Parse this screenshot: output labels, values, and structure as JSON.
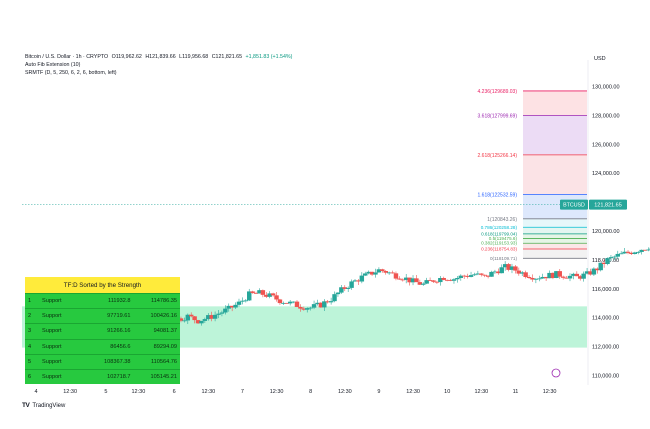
{
  "header": {
    "line1": {
      "symbol": "Bitcoin / U.S. Dollar · 1h · CRYPTO",
      "o": "O119,962.62",
      "h": "H121,839.66",
      "l": "L119,956.68",
      "c": "C121,821.65",
      "change": "+1,851.83 (+1.54%)"
    },
    "line2": "Auto Fib Extension (10)",
    "line3": "SRMTF (D, 5, 250, 6, 2, 6, bottom, left)"
  },
  "currency_label": "USD",
  "price_badge": {
    "symbol": "BTCUSD",
    "value": "121,821.65"
  },
  "branding": "TradingView",
  "colors": {
    "up": "#26a69a",
    "down": "#ef5350",
    "support_zone": "#b2f2d2",
    "table_title": "#ffeb3b",
    "table_row": "#27c93f"
  },
  "tf_table": {
    "title": "TF:D Sorted by the Strength",
    "rows": [
      {
        "rank": "1",
        "type": "Support",
        "low": "111932.8",
        "high": "114786.35"
      },
      {
        "rank": "2",
        "type": "Support",
        "low": "97719.61",
        "high": "100426.16"
      },
      {
        "rank": "3",
        "type": "Support",
        "low": "91266.16",
        "high": "94081.37"
      },
      {
        "rank": "4",
        "type": "Support",
        "low": "86456.6",
        "high": "89294.09"
      },
      {
        "rank": "5",
        "type": "Support",
        "low": "108367.38",
        "high": "110564.76"
      },
      {
        "rank": "6",
        "type": "Support",
        "low": "102718.7",
        "high": "105145.21"
      }
    ]
  },
  "chart_data": {
    "type": "candlestick",
    "symbol": "BTCUSD",
    "interval": "1h",
    "ylim": [
      109000,
      131000
    ],
    "y_ticks": [
      110000,
      112000,
      114000,
      116000,
      118000,
      120000,
      122000,
      124000,
      126000,
      128000,
      130000
    ],
    "y_tick_labels": [
      "110,000.00",
      "112,000.00",
      "114,000.00",
      "116,000.00",
      "118,000.00",
      "120,000.00",
      "122,000.00",
      "124,000.00",
      "126,000.00",
      "128,000.00",
      "130,000.00"
    ],
    "x_tick_labels": [
      "4",
      "12:30",
      "5",
      "12:30",
      "6",
      "12:30",
      "7",
      "12:30",
      "8",
      "12:30",
      "9",
      "12:30",
      "10",
      "12:30",
      "11",
      "12:30"
    ],
    "x_tick_index": [
      0,
      20,
      41,
      60,
      81,
      101,
      121,
      141,
      161,
      181,
      201,
      221,
      241,
      261,
      281,
      301
    ],
    "last_price": 121821.65,
    "support_zone": [
      111932.8,
      114786.35
    ],
    "fib_levels": [
      {
        "label": "4.236(129689.03)",
        "value": 129689.03,
        "color": "#e91e63"
      },
      {
        "label": "3.618(127999.69)",
        "value": 127999.69,
        "color": "#9c27b0"
      },
      {
        "label": "2.618(125266.14)",
        "value": 125266.14,
        "color": "#f23645"
      },
      {
        "label": "1.618(122532.59)",
        "value": 122532.59,
        "color": "#2962ff"
      },
      {
        "label": "1(120843.26)",
        "value": 120843.26,
        "color": "#787b86"
      },
      {
        "label": "0.786(120258.28)",
        "value": 120258.28,
        "color": "#00bcd4"
      },
      {
        "label": "0.618(119799.04)",
        "value": 119799.04,
        "color": "#089981"
      },
      {
        "label": "0.5(119475.6)",
        "value": 119475.6,
        "color": "#4caf50"
      },
      {
        "label": "0.382(119153.93)",
        "value": 119153.93,
        "color": "#4caf50"
      },
      {
        "label": "0.236(118754.83)",
        "value": 118754.83,
        "color": "#f23645"
      },
      {
        "label": "0(118109.71)",
        "value": 118109.71,
        "color": "#787b86"
      }
    ],
    "close_path": [
      [
        0,
        113900
      ],
      [
        10,
        114200
      ],
      [
        20,
        114400
      ],
      [
        28,
        114900
      ],
      [
        35,
        115200
      ],
      [
        42,
        114700
      ],
      [
        50,
        114300
      ],
      [
        58,
        114000
      ],
      [
        66,
        113600
      ],
      [
        72,
        113500
      ],
      [
        78,
        113300
      ],
      [
        84,
        113500
      ],
      [
        90,
        113900
      ],
      [
        96,
        114100
      ],
      [
        102,
        113800
      ],
      [
        108,
        114000
      ],
      [
        114,
        114300
      ],
      [
        120,
        114600
      ],
      [
        126,
        115000
      ],
      [
        132,
        115600
      ],
      [
        138,
        115700
      ],
      [
        144,
        115500
      ],
      [
        150,
        115200
      ],
      [
        156,
        115000
      ],
      [
        162,
        114800
      ],
      [
        168,
        114700
      ],
      [
        174,
        114900
      ],
      [
        180,
        115300
      ],
      [
        186,
        115900
      ],
      [
        192,
        116400
      ],
      [
        198,
        116800
      ],
      [
        204,
        117100
      ],
      [
        208,
        117300
      ],
      [
        212,
        117200
      ],
      [
        216,
        117000
      ],
      [
        222,
        116800
      ],
      [
        228,
        116500
      ],
      [
        234,
        116300
      ],
      [
        240,
        116600
      ],
      [
        246,
        116800
      ],
      [
        252,
        116700
      ],
      [
        258,
        116900
      ],
      [
        264,
        117000
      ],
      [
        270,
        116800
      ],
      [
        276,
        117200
      ],
      [
        282,
        117500
      ],
      [
        288,
        117300
      ],
      [
        294,
        117000
      ],
      [
        300,
        116800
      ],
      [
        306,
        116900
      ],
      [
        312,
        117000
      ],
      [
        318,
        116900
      ],
      [
        324,
        116800
      ],
      [
        330,
        117000
      ],
      [
        336,
        117400
      ],
      [
        342,
        118000
      ],
      [
        348,
        118300
      ],
      [
        354,
        118500
      ],
      [
        360,
        118700
      ],
      [
        366,
        118900
      ],
      [
        372,
        118700
      ],
      [
        378,
        118500
      ],
      [
        384,
        118800
      ],
      [
        390,
        119300
      ],
      [
        396,
        119800
      ],
      [
        402,
        120100
      ],
      [
        408,
        120800
      ],
      [
        412,
        121821.65
      ]
    ]
  }
}
